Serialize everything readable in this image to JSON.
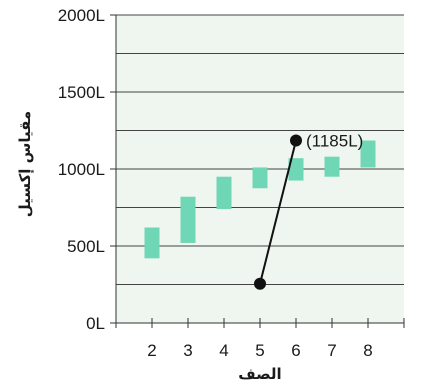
{
  "chart_data": {
    "type": "range-bar",
    "xlabel": "الصف",
    "ylabel": "مقياس إكسيل",
    "ylim": [
      0,
      2000
    ],
    "y_ticks": [
      0,
      500,
      1000,
      1500,
      2000
    ],
    "y_tick_labels": [
      "0L",
      "500L",
      "1000L",
      "1500L",
      "2000L"
    ],
    "x_ticks": [
      2,
      3,
      4,
      5,
      6,
      7,
      8
    ],
    "xlim": [
      1,
      9
    ],
    "y_gridline_step": 250,
    "grid": true,
    "colors": {
      "plot_background": "#eef6ef",
      "bar": "#6fd6b6",
      "gridline": "#444444",
      "line": "#111111"
    },
    "ranges": [
      {
        "grade": 2,
        "low": 420,
        "high": 620
      },
      {
        "grade": 3,
        "low": 520,
        "high": 820
      },
      {
        "grade": 4,
        "low": 740,
        "high": 950
      },
      {
        "grade": 5,
        "low": 875,
        "high": 1010
      },
      {
        "grade": 6,
        "low": 925,
        "high": 1070
      },
      {
        "grade": 7,
        "low": 950,
        "high": 1080
      },
      {
        "grade": 8,
        "low": 1010,
        "high": 1185
      }
    ],
    "trend_line": {
      "start": {
        "x": 5,
        "y": 255
      },
      "end": {
        "x": 6,
        "y": 1185
      }
    },
    "annotation": {
      "text": "(1185L)",
      "x": 6,
      "y": 1185
    }
  }
}
